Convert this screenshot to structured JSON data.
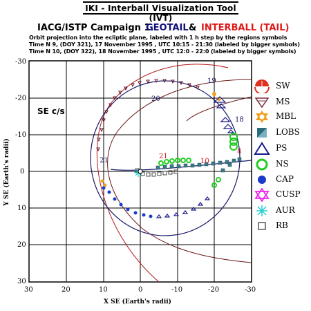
{
  "header": {
    "app_title": "IKI - Interball Visualization Tool (IVT)",
    "campaign": "IACG/ISTP Campaign 1.",
    "geotail": "GEOTAIL",
    "amp": "&",
    "interball": "INTERBALL (TAIL)",
    "line1": "Orbit projection into the ecliptic plane, labeled with 1 h step by the regions symbols",
    "line2": "Time N 9, (DOY 321), 17 November 1995 ,  UTC 10:15 - 21:30 (labeled by bigger symbols)",
    "line3": "Time N 10, (DOY 322), 18 November 1995 ,  UTC 12:0 - 22:0 (labeled by bigger symbols)"
  },
  "plot": {
    "frame_label": "SE c/s",
    "xlabel": "X SE (Earth's radii)",
    "ylabel": "Y SE (Earth's radii)",
    "x_ticks": [
      "30",
      "20",
      "10",
      "0",
      "-10",
      "-20",
      "-30"
    ],
    "y_ticks": [
      "-30",
      "-20",
      "-10",
      "0",
      "10",
      "20",
      "30"
    ],
    "orbit_hour_labels": [
      "20",
      "19",
      "18",
      "21",
      "21",
      "10",
      "8"
    ]
  },
  "legend": [
    {
      "code": "SW",
      "icon": "half-disk-icon",
      "color": "#e03020"
    },
    {
      "code": "MS",
      "icon": "down-triangle-icon",
      "color": "#7a2a3a"
    },
    {
      "code": "MBL",
      "icon": "star-of-david-icon",
      "color": "#f0a020"
    },
    {
      "code": "LOBS",
      "icon": "split-square-icon",
      "color": "#3a7a8a"
    },
    {
      "code": "PS",
      "icon": "up-triangle-icon",
      "color": "#1a1a8a"
    },
    {
      "code": "NS",
      "icon": "ring-icon",
      "color": "#22cc22"
    },
    {
      "code": "CAP",
      "icon": "filled-circle-icon",
      "color": "#1a3acc"
    },
    {
      "code": "CUSP",
      "icon": "star-icon",
      "color": "#ee22ee"
    },
    {
      "code": "AUR",
      "icon": "asterisk-icon",
      "color": "#22cccc"
    },
    {
      "code": "RB",
      "icon": "open-square-icon",
      "color": "#555555"
    }
  ]
}
